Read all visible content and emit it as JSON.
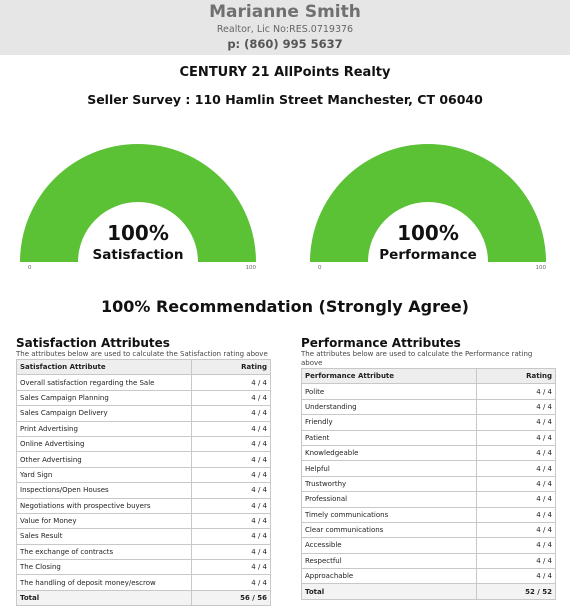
{
  "agent": {
    "name": "Marianne Smith",
    "license": "Realtor, Lic No:RES.0719376",
    "phone": "p: (860) 995 5637"
  },
  "company": "CENTURY 21 AllPoints Realty",
  "survey_title": "Seller Survey : 110 Hamlin Street Manchester, CT 06040",
  "gauges": [
    {
      "percent": "100%",
      "value": 100,
      "label": "Satisfaction",
      "min": "0",
      "max": "100",
      "color": "#5bc236"
    },
    {
      "percent": "100%",
      "value": 100,
      "label": "Performance",
      "min": "0",
      "max": "100",
      "color": "#5bc236"
    }
  ],
  "recommendation": "100% Recommendation (Strongly Agree)",
  "satisfaction": {
    "title": "Satisfaction Attributes",
    "description": "The attributes below are used to calculate the Satisfaction rating above",
    "col_attr": "Satisfaction Attribute",
    "col_rating": "Rating",
    "rows": [
      {
        "a": "Overall satisfaction regarding the Sale",
        "r": "4 / 4"
      },
      {
        "a": "Sales Campaign Planning",
        "r": "4 / 4"
      },
      {
        "a": "Sales Campaign Delivery",
        "r": "4 / 4"
      },
      {
        "a": "Print Advertising",
        "r": "4 / 4"
      },
      {
        "a": "Online Advertising",
        "r": "4 / 4"
      },
      {
        "a": "Other Advertising",
        "r": "4 / 4"
      },
      {
        "a": "Yard Sign",
        "r": "4 / 4"
      },
      {
        "a": "Inspections/Open Houses",
        "r": "4 / 4"
      },
      {
        "a": "Negotiations with prospective buyers",
        "r": "4 / 4"
      },
      {
        "a": "Value for Money",
        "r": "4 / 4"
      },
      {
        "a": "Sales Result",
        "r": "4 / 4"
      },
      {
        "a": "The exchange of contracts",
        "r": "4 / 4"
      },
      {
        "a": "The Closing",
        "r": "4 / 4"
      },
      {
        "a": "The handling of deposit money/escrow",
        "r": "4 / 4"
      }
    ],
    "total_label": "Total",
    "total": "56 / 56"
  },
  "performance": {
    "title": "Performance Attributes",
    "description": "The attributes below are used to calculate the Performance rating above",
    "col_attr": "Performance Attribute",
    "col_rating": "Rating",
    "rows": [
      {
        "a": "Polite",
        "r": "4 / 4"
      },
      {
        "a": "Understanding",
        "r": "4 / 4"
      },
      {
        "a": "Friendly",
        "r": "4 / 4"
      },
      {
        "a": "Patient",
        "r": "4 / 4"
      },
      {
        "a": "Knowledgeable",
        "r": "4 / 4"
      },
      {
        "a": "Helpful",
        "r": "4 / 4"
      },
      {
        "a": "Trustworthy",
        "r": "4 / 4"
      },
      {
        "a": "Professional",
        "r": "4 / 4"
      },
      {
        "a": "Timely communications",
        "r": "4 / 4"
      },
      {
        "a": "Clear communications",
        "r": "4 / 4"
      },
      {
        "a": "Accessible",
        "r": "4 / 4"
      },
      {
        "a": "Respectful",
        "r": "4 / 4"
      },
      {
        "a": "Approachable",
        "r": "4 / 4"
      }
    ],
    "total_label": "Total",
    "total": "52 / 52"
  }
}
